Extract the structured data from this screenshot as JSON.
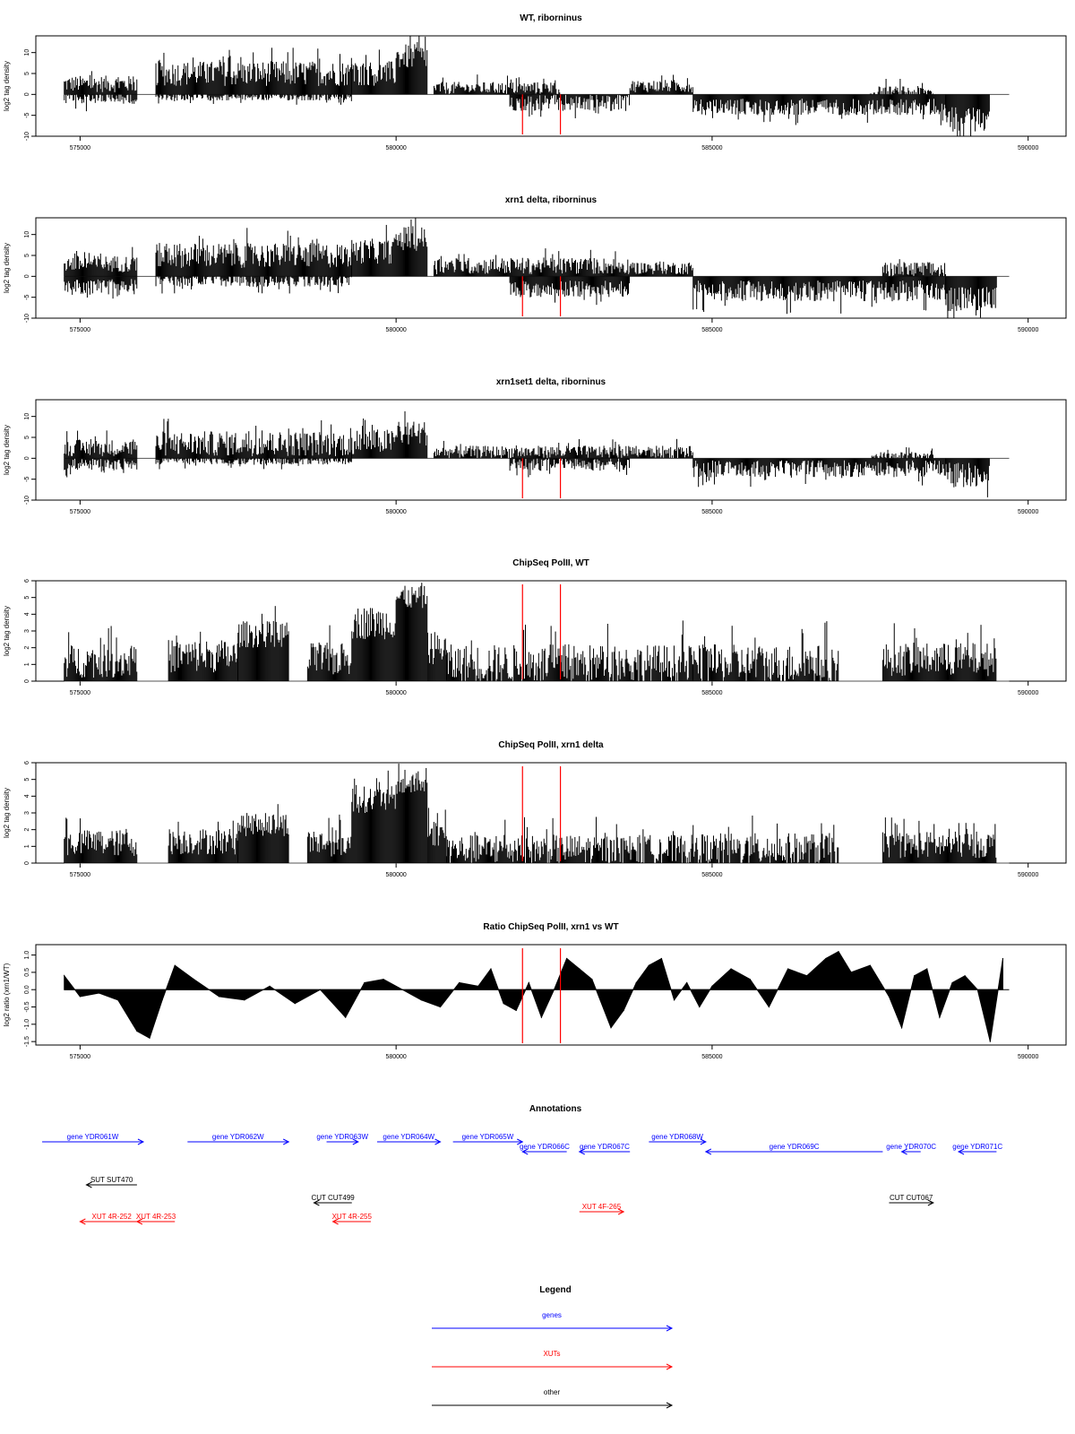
{
  "chart_data": [
    {
      "type": "bar",
      "title": "WT, riborninus",
      "ylabel": "log2 tag density",
      "ylim": [
        -10,
        14
      ],
      "yticks": [
        -10,
        -5,
        0,
        5,
        10
      ],
      "xlim": [
        574300,
        590600
      ],
      "xticks": [
        575000,
        580000,
        585000,
        590000
      ],
      "markers": [
        582000,
        582600
      ],
      "segments": [
        {
          "x0": 574750,
          "x1": 575900,
          "sign": 1,
          "level": 2.5,
          "spread": 2
        },
        {
          "x0": 574750,
          "x1": 575900,
          "sign": -1,
          "level": 0.8,
          "spread": 1.5
        },
        {
          "x0": 576200,
          "x1": 579300,
          "sign": 1,
          "level": 5,
          "spread": 3
        },
        {
          "x0": 576200,
          "x1": 579300,
          "sign": -1,
          "level": 0.5,
          "spread": 1
        },
        {
          "x0": 579300,
          "x1": 580000,
          "sign": 1,
          "level": 5,
          "spread": 3
        },
        {
          "x0": 580000,
          "x1": 580500,
          "sign": 1,
          "level": 9,
          "spread": 3
        },
        {
          "x0": 580600,
          "x1": 582600,
          "sign": 1,
          "level": 1.5,
          "spread": 1.5
        },
        {
          "x0": 581800,
          "x1": 583700,
          "sign": -1,
          "level": 2,
          "spread": 2
        },
        {
          "x0": 583700,
          "x1": 584700,
          "sign": 1,
          "level": 2,
          "spread": 1.5
        },
        {
          "x0": 584700,
          "x1": 588700,
          "sign": -1,
          "level": 3,
          "spread": 2
        },
        {
          "x0": 587500,
          "x1": 588500,
          "sign": 1,
          "level": 0.5,
          "spread": 1.5
        },
        {
          "x0": 588700,
          "x1": 589400,
          "sign": -1,
          "level": 6,
          "spread": 3
        }
      ]
    },
    {
      "type": "bar",
      "title": "xrn1 delta, riborninus",
      "ylabel": "log2 tag density",
      "ylim": [
        -10,
        14
      ],
      "yticks": [
        -10,
        -5,
        0,
        5,
        10
      ],
      "xlim": [
        574300,
        590600
      ],
      "xticks": [
        575000,
        580000,
        585000,
        590000
      ],
      "markers": [
        582000,
        582600
      ],
      "segments": [
        {
          "x0": 574750,
          "x1": 575900,
          "sign": 1,
          "level": 3,
          "spread": 2
        },
        {
          "x0": 574750,
          "x1": 575900,
          "sign": -1,
          "level": 2.5,
          "spread": 2
        },
        {
          "x0": 576200,
          "x1": 579300,
          "sign": 1,
          "level": 5,
          "spread": 3
        },
        {
          "x0": 576200,
          "x1": 579300,
          "sign": -1,
          "level": 1,
          "spread": 1.5
        },
        {
          "x0": 579300,
          "x1": 580000,
          "sign": 1,
          "level": 6,
          "spread": 3
        },
        {
          "x0": 580000,
          "x1": 580500,
          "sign": 1,
          "level": 9,
          "spread": 3
        },
        {
          "x0": 580600,
          "x1": 583700,
          "sign": 1,
          "level": 2.5,
          "spread": 2
        },
        {
          "x0": 581800,
          "x1": 583700,
          "sign": -1,
          "level": 3,
          "spread": 2
        },
        {
          "x0": 583700,
          "x1": 584700,
          "sign": 1,
          "level": 2,
          "spread": 1.5
        },
        {
          "x0": 584700,
          "x1": 588700,
          "sign": -1,
          "level": 3.5,
          "spread": 2.5
        },
        {
          "x0": 587700,
          "x1": 588700,
          "sign": 1,
          "level": 1.5,
          "spread": 2
        },
        {
          "x0": 588700,
          "x1": 589500,
          "sign": -1,
          "level": 5.5,
          "spread": 3
        }
      ]
    },
    {
      "type": "bar",
      "title": "xrn1set1 delta, riborninus",
      "ylabel": "log2 tag density",
      "ylim": [
        -10,
        14
      ],
      "yticks": [
        -10,
        -5,
        0,
        5,
        10
      ],
      "xlim": [
        574300,
        590600
      ],
      "xticks": [
        575000,
        580000,
        585000,
        590000
      ],
      "markers": [
        582000,
        582600
      ],
      "segments": [
        {
          "x0": 574750,
          "x1": 575900,
          "sign": 1,
          "level": 2.5,
          "spread": 2
        },
        {
          "x0": 574750,
          "x1": 575900,
          "sign": -1,
          "level": 1.5,
          "spread": 1.5
        },
        {
          "x0": 576200,
          "x1": 579300,
          "sign": 1,
          "level": 3.5,
          "spread": 3
        },
        {
          "x0": 576200,
          "x1": 579300,
          "sign": -1,
          "level": 0.5,
          "spread": 1
        },
        {
          "x0": 579300,
          "x1": 580000,
          "sign": 1,
          "level": 4,
          "spread": 3
        },
        {
          "x0": 580000,
          "x1": 580500,
          "sign": 1,
          "level": 6,
          "spread": 3
        },
        {
          "x0": 580600,
          "x1": 583700,
          "sign": 1,
          "level": 1.5,
          "spread": 1.5
        },
        {
          "x0": 581800,
          "x1": 583700,
          "sign": -1,
          "level": 1.5,
          "spread": 1.5
        },
        {
          "x0": 583700,
          "x1": 584700,
          "sign": 1,
          "level": 1.5,
          "spread": 1.5
        },
        {
          "x0": 584700,
          "x1": 588700,
          "sign": -1,
          "level": 2.5,
          "spread": 2
        },
        {
          "x0": 587500,
          "x1": 588500,
          "sign": 1,
          "level": 0.5,
          "spread": 1
        },
        {
          "x0": 588700,
          "x1": 589400,
          "sign": -1,
          "level": 4,
          "spread": 3
        }
      ]
    },
    {
      "type": "bar",
      "title": "ChipSeq PolII, WT",
      "ylabel": "log2 tag density",
      "ylim": [
        0,
        6
      ],
      "yticks": [
        0,
        1,
        2,
        3,
        4,
        5,
        6
      ],
      "xlim": [
        574300,
        590600
      ],
      "xticks": [
        575000,
        580000,
        585000,
        590000
      ],
      "markers": [
        582000,
        582600
      ],
      "segments": [
        {
          "x0": 574750,
          "x1": 575900,
          "sign": 1,
          "level": 1.2,
          "spread": 1
        },
        {
          "x0": 576400,
          "x1": 577500,
          "sign": 1,
          "level": 1.5,
          "spread": 1
        },
        {
          "x0": 577500,
          "x1": 578300,
          "sign": 1,
          "level": 2.8,
          "spread": 0.8
        },
        {
          "x0": 578600,
          "x1": 579300,
          "sign": 1,
          "level": 1.3,
          "spread": 1
        },
        {
          "x0": 579300,
          "x1": 580000,
          "sign": 1,
          "level": 3.5,
          "spread": 1
        },
        {
          "x0": 580000,
          "x1": 580500,
          "sign": 1,
          "level": 5,
          "spread": 0.7
        },
        {
          "x0": 580500,
          "x1": 580800,
          "sign": 1,
          "level": 2,
          "spread": 1
        },
        {
          "x0": 580800,
          "x1": 584700,
          "sign": 1,
          "level": 1,
          "spread": 1.2
        },
        {
          "x0": 584700,
          "x1": 587000,
          "sign": 1,
          "level": 1,
          "spread": 1.2
        },
        {
          "x0": 587700,
          "x1": 589500,
          "sign": 1,
          "level": 1.3,
          "spread": 1
        }
      ]
    },
    {
      "type": "bar",
      "title": "ChipSeq PolII, xrn1 delta",
      "ylabel": "log2 tag density",
      "ylim": [
        0,
        6
      ],
      "yticks": [
        0,
        1,
        2,
        3,
        4,
        5,
        6
      ],
      "xlim": [
        574300,
        590600
      ],
      "xticks": [
        575000,
        580000,
        585000,
        590000
      ],
      "markers": [
        582000,
        582600
      ],
      "segments": [
        {
          "x0": 574750,
          "x1": 575900,
          "sign": 1,
          "level": 1.2,
          "spread": 0.8
        },
        {
          "x0": 576400,
          "x1": 577500,
          "sign": 1,
          "level": 1.3,
          "spread": 0.8
        },
        {
          "x0": 577500,
          "x1": 578300,
          "sign": 1,
          "level": 2.3,
          "spread": 0.7
        },
        {
          "x0": 578600,
          "x1": 579300,
          "sign": 1,
          "level": 1.2,
          "spread": 0.8
        },
        {
          "x0": 579300,
          "x1": 580000,
          "sign": 1,
          "level": 3.8,
          "spread": 0.8
        },
        {
          "x0": 580000,
          "x1": 580500,
          "sign": 1,
          "level": 4.7,
          "spread": 0.6
        },
        {
          "x0": 580500,
          "x1": 580800,
          "sign": 1,
          "level": 1.8,
          "spread": 0.8
        },
        {
          "x0": 580800,
          "x1": 584700,
          "sign": 1,
          "level": 0.8,
          "spread": 0.9
        },
        {
          "x0": 584700,
          "x1": 587000,
          "sign": 1,
          "level": 0.8,
          "spread": 1
        },
        {
          "x0": 587700,
          "x1": 589500,
          "sign": 1,
          "level": 1.1,
          "spread": 0.8
        }
      ]
    },
    {
      "type": "area",
      "title": "Ratio ChipSeq PolII, xrn1 vs WT",
      "ylabel": "log2 ratio (xrn1/WT)",
      "ylim": [
        -1.6,
        1.3
      ],
      "yticks": [
        -1.5,
        -1.0,
        -0.5,
        0.0,
        0.5,
        1.0
      ],
      "xlim": [
        574300,
        590600
      ],
      "xticks": [
        575000,
        580000,
        585000,
        590000
      ],
      "markers": [
        582000,
        582600
      ],
      "x": [
        574750,
        575000,
        575300,
        575600,
        575900,
        576100,
        576300,
        576500,
        576800,
        577200,
        577600,
        578000,
        578400,
        578800,
        579200,
        579500,
        579800,
        580100,
        580400,
        580700,
        581000,
        581300,
        581500,
        581700,
        581900,
        582100,
        582300,
        582500,
        582700,
        582900,
        583100,
        583400,
        583600,
        583800,
        584000,
        584200,
        584400,
        584600,
        584800,
        585000,
        585300,
        585600,
        585900,
        586200,
        586500,
        586800,
        587000,
        587200,
        587500,
        587800,
        588000,
        588200,
        588400,
        588600,
        588800,
        589000,
        589200,
        589400,
        589600
      ],
      "y": [
        0.4,
        -0.2,
        -0.1,
        -0.3,
        -1.2,
        -1.4,
        -0.3,
        0.7,
        0.3,
        -0.2,
        -0.3,
        0.1,
        -0.4,
        0.0,
        -0.8,
        0.2,
        0.3,
        0.0,
        -0.3,
        -0.5,
        0.2,
        0.1,
        0.6,
        -0.4,
        -0.6,
        0.2,
        -0.8,
        0.0,
        0.9,
        0.6,
        0.3,
        -1.1,
        -0.6,
        0.2,
        0.7,
        0.9,
        -0.3,
        0.2,
        -0.5,
        0.1,
        0.6,
        0.3,
        -0.5,
        0.6,
        0.4,
        0.9,
        1.1,
        0.5,
        0.7,
        -0.2,
        -1.1,
        0.4,
        0.6,
        -0.8,
        0.2,
        0.4,
        0.0,
        -1.5,
        0.9
      ]
    }
  ],
  "annotations": {
    "title": "Annotations",
    "xlim": [
      574300,
      590600
    ],
    "tracks": [
      {
        "label": "gene YDR061W",
        "x0": 574400,
        "x1": 576000,
        "dir": "right",
        "kind": "gene",
        "row": 0
      },
      {
        "label": "gene YDR062W",
        "x0": 576700,
        "x1": 578300,
        "dir": "right",
        "kind": "gene",
        "row": 0
      },
      {
        "label": "gene YDR063W",
        "x0": 578900,
        "x1": 579400,
        "dir": "right",
        "kind": "gene",
        "row": 0
      },
      {
        "label": "gene YDR064W",
        "x0": 579700,
        "x1": 580700,
        "dir": "right",
        "kind": "gene",
        "row": 0
      },
      {
        "label": "gene YDR065W",
        "x0": 580900,
        "x1": 582000,
        "dir": "right",
        "kind": "gene",
        "row": 0
      },
      {
        "label": "gene YDR066C",
        "x0": 582000,
        "x1": 582700,
        "dir": "left",
        "kind": "gene",
        "row": 1
      },
      {
        "label": "gene YDR067C",
        "x0": 582900,
        "x1": 583700,
        "dir": "left",
        "kind": "gene",
        "row": 1
      },
      {
        "label": "gene YDR068W",
        "x0": 584000,
        "x1": 584900,
        "dir": "right",
        "kind": "gene",
        "row": 0
      },
      {
        "label": "gene YDR069C",
        "x0": 584900,
        "x1": 587700,
        "dir": "left",
        "kind": "gene",
        "row": 1
      },
      {
        "label": "gene YDR070C",
        "x0": 588000,
        "x1": 588300,
        "dir": "left",
        "kind": "gene",
        "row": 1
      },
      {
        "label": "gene YDR071C",
        "x0": 588900,
        "x1": 589500,
        "dir": "left",
        "kind": "gene",
        "row": 1
      },
      {
        "label": "SUT SUT470",
        "x0": 575100,
        "x1": 575900,
        "dir": "left",
        "kind": "other",
        "row": 2
      },
      {
        "label": "CUT CUT499",
        "x0": 578700,
        "x1": 579300,
        "dir": "left",
        "kind": "other",
        "row": 3
      },
      {
        "label": "CUT CUT067",
        "x0": 587800,
        "x1": 588500,
        "dir": "right",
        "kind": "other",
        "row": 3
      },
      {
        "label": "XUT 4R-252",
        "x0": 575000,
        "x1": 576000,
        "dir": "left",
        "kind": "xut",
        "row": 5
      },
      {
        "label": "XUT 4R-253",
        "x0": 575900,
        "x1": 576500,
        "dir": "left",
        "kind": "xut",
        "row": 5
      },
      {
        "label": "XUT 4R-255",
        "x0": 579000,
        "x1": 579600,
        "dir": "left",
        "kind": "xut",
        "row": 5
      },
      {
        "label": "XUT 4F-265",
        "x0": 582900,
        "x1": 583600,
        "dir": "right",
        "kind": "xut",
        "row": 4
      }
    ]
  },
  "legend": {
    "title": "Legend",
    "items": [
      {
        "label": "genes",
        "color": "#0000ff"
      },
      {
        "label": "XUTs",
        "color": "#ff0000"
      },
      {
        "label": "other",
        "color": "#000000"
      }
    ]
  },
  "colors": {
    "gene": "#0000ff",
    "xut": "#ff0000",
    "other": "#000000",
    "marker": "#ff0000",
    "bars": "#000000"
  }
}
